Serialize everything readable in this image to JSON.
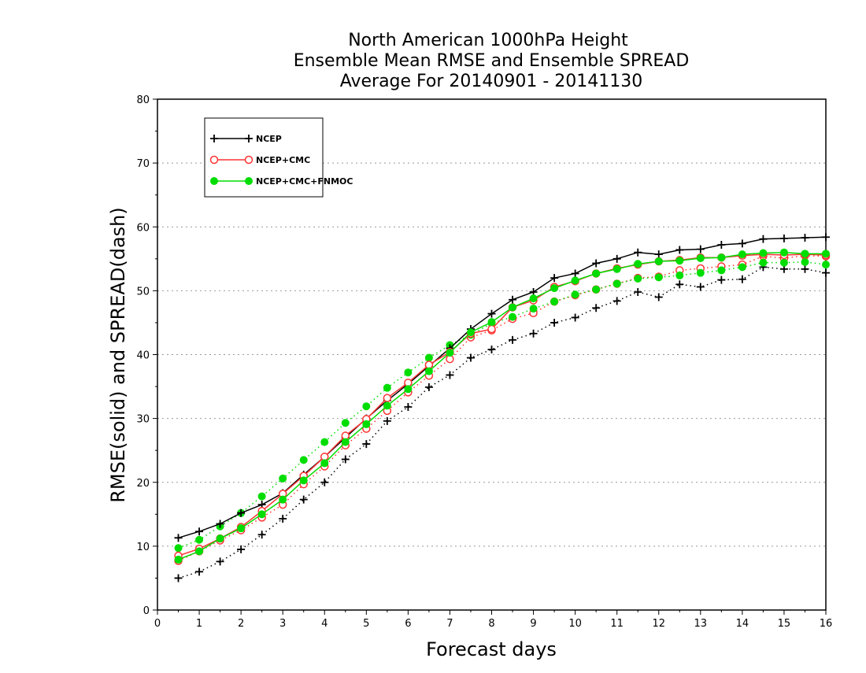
{
  "chart_data": {
    "type": "line",
    "title": [
      "North American 1000hPa Height",
      "Ensemble Mean RMSE and Ensemble SPREAD",
      "Average For 20140901 - 20141130"
    ],
    "xlabel": "Forecast days",
    "ylabel": "RMSE(solid) and SPREAD(dash)",
    "xlim": [
      0,
      16
    ],
    "ylim": [
      0,
      80
    ],
    "xticks": [
      "0",
      "1",
      "2",
      "3",
      "4",
      "5",
      "6",
      "7",
      "8",
      "9",
      "10",
      "11",
      "12",
      "13",
      "14",
      "15",
      "16"
    ],
    "yticks": [
      "0",
      "10",
      "20",
      "30",
      "40",
      "50",
      "60",
      "70",
      "80"
    ],
    "grid": "horizontal dotted",
    "legend_placement": "top-left",
    "x": [
      0.5,
      1,
      1.5,
      2,
      2.5,
      3,
      3.5,
      4,
      4.5,
      5,
      5.5,
      6,
      6.5,
      7,
      7.5,
      8,
      8.5,
      9,
      9.5,
      10,
      10.5,
      11,
      11.5,
      12,
      12.5,
      13,
      13.5,
      14,
      14.5,
      15,
      15.5,
      16
    ],
    "series": [
      {
        "name": "NCEP",
        "color": "#000000",
        "marker": "plus",
        "rmse": [
          11.3,
          12.3,
          13.5,
          15.2,
          16.5,
          18.3,
          21.2,
          24.0,
          27.0,
          30.0,
          32.8,
          35.4,
          38.2,
          41.0,
          44.0,
          46.4,
          48.6,
          49.8,
          52.0,
          52.7,
          54.3,
          55.0,
          56.0,
          55.7,
          56.4,
          56.5,
          57.2,
          57.4,
          58.1,
          58.2,
          58.3,
          58.4
        ],
        "spread": [
          5.0,
          6.0,
          7.6,
          9.5,
          11.8,
          14.3,
          17.3,
          20.0,
          23.6,
          26.0,
          29.6,
          31.8,
          34.9,
          36.8,
          39.5,
          40.8,
          42.3,
          43.3,
          45.0,
          45.8,
          47.3,
          48.4,
          49.8,
          49.0,
          51.0,
          50.6,
          51.7,
          51.8,
          53.7,
          53.4,
          53.4,
          52.8
        ]
      },
      {
        "name": "NCEP+CMC",
        "color": "#ff3333",
        "marker": "open-circle",
        "rmse": [
          8.5,
          9.6,
          11.2,
          13.0,
          15.5,
          18.2,
          21.0,
          24.0,
          27.3,
          29.9,
          33.2,
          35.6,
          38.4,
          40.4,
          43.3,
          44.0,
          47.4,
          48.5,
          50.6,
          51.5,
          52.7,
          53.5,
          54.1,
          54.6,
          54.8,
          55.2,
          55.2,
          55.5,
          55.7,
          55.6,
          55.7,
          55.6
        ],
        "spread": [
          7.7,
          9.2,
          10.9,
          12.5,
          14.5,
          16.5,
          19.7,
          22.5,
          25.8,
          28.4,
          31.2,
          34.1,
          36.7,
          39.3,
          42.7,
          43.8,
          45.6,
          46.5,
          48.3,
          49.3,
          50.2,
          51.1,
          52.0,
          52.2,
          53.2,
          53.5,
          53.8,
          54.1,
          55.4,
          55.1,
          55.5,
          55.4
        ]
      },
      {
        "name": "NCEP+CMC+FNMOC",
        "color": "#00dd00",
        "marker": "filled-circle",
        "rmse": [
          7.9,
          9.2,
          11.2,
          12.8,
          15.0,
          17.3,
          20.3,
          23.0,
          26.3,
          29.1,
          32.0,
          34.6,
          37.4,
          40.3,
          43.5,
          45.1,
          47.4,
          48.8,
          50.4,
          51.6,
          52.7,
          53.4,
          54.2,
          54.6,
          54.7,
          55.1,
          55.2,
          55.7,
          55.9,
          56.0,
          55.8,
          55.8
        ],
        "spread": [
          9.7,
          11.0,
          13.1,
          15.2,
          17.8,
          20.6,
          23.5,
          26.3,
          29.3,
          31.9,
          34.8,
          37.2,
          39.5,
          41.5,
          43.1,
          44.9,
          45.9,
          47.2,
          48.3,
          49.4,
          50.2,
          51.1,
          51.9,
          52.1,
          52.4,
          52.8,
          53.2,
          53.7,
          54.4,
          54.4,
          54.5,
          54.1
        ]
      }
    ]
  }
}
